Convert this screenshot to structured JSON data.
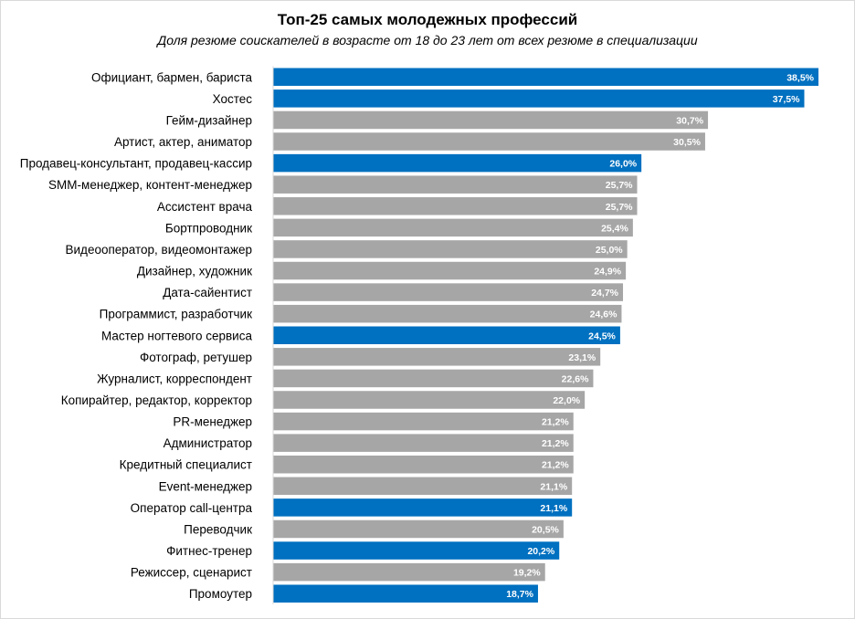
{
  "chart_data": {
    "type": "bar",
    "orientation": "horizontal",
    "title": "Топ-25 самых молодежных профессий",
    "subtitle": "Доля резюме соискателей в возрасте от 18 до 23 лет от всех резюме в специализации",
    "categories": [
      "Официант, бармен, бариста",
      "Хостес",
      "Гейм-дизайнер",
      "Артист, актер, аниматор",
      "Продавец-консультант, продавец-кассир",
      "SMM-менеджер, контент-менеджер",
      "Ассистент врача",
      "Бортпроводник",
      "Видеооператор, видеомонтажер",
      "Дизайнер, художник",
      "Дата-сайентист",
      "Программист, разработчик",
      "Мастер ногтевого сервиса",
      "Фотограф, ретушер",
      "Журналист, корреспондент",
      "Копирайтер, редактор, корректор",
      "PR-менеджер",
      "Администратор",
      "Кредитный специалист",
      "Event-менеджер",
      "Оператор call-центра",
      "Переводчик",
      "Фитнес-тренер",
      "Режиссер, сценарист",
      "Промоутер"
    ],
    "values": [
      38.5,
      37.5,
      30.7,
      30.5,
      26.0,
      25.7,
      25.7,
      25.4,
      25.0,
      24.9,
      24.7,
      24.6,
      24.5,
      23.1,
      22.6,
      22.0,
      21.2,
      21.2,
      21.2,
      21.1,
      21.1,
      20.5,
      20.2,
      19.2,
      18.7
    ],
    "value_labels": [
      "38,5%",
      "37,5%",
      "30,7%",
      "30,5%",
      "26,0%",
      "25,7%",
      "25,7%",
      "25,4%",
      "25,0%",
      "24,9%",
      "24,7%",
      "24,6%",
      "24,5%",
      "23,1%",
      "22,6%",
      "22,0%",
      "21,2%",
      "21,2%",
      "21,2%",
      "21,1%",
      "21,1%",
      "20,5%",
      "20,2%",
      "19,2%",
      "18,7%"
    ],
    "highlighted": [
      true,
      true,
      false,
      false,
      true,
      false,
      false,
      false,
      false,
      false,
      false,
      false,
      true,
      false,
      false,
      false,
      false,
      false,
      false,
      false,
      true,
      false,
      true,
      false,
      true
    ],
    "xlim": [
      0,
      38.5
    ],
    "grid": false,
    "legend": "none",
    "colors": {
      "highlight": "#0070c0",
      "default": "#a6a6a6",
      "value_text": "#ffffff"
    }
  }
}
